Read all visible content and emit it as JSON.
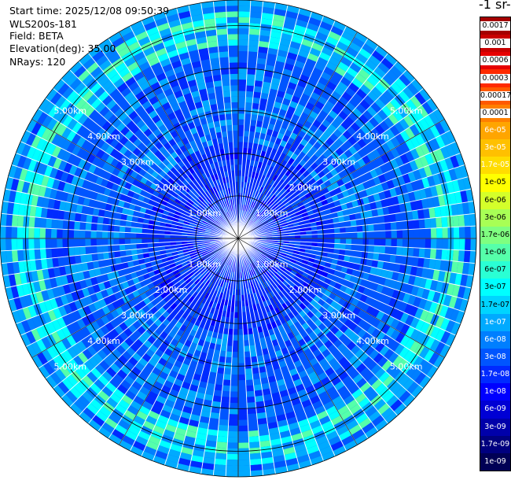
{
  "info": {
    "start_time": "Start time: 2025/12/08 09:50:39",
    "instrument": "WLS200s-181",
    "field": "Field: BETA",
    "elevation": "Elevation(deg): 35.00",
    "nrays": "NRays: 120"
  },
  "chart_data": {
    "type": "heatmap",
    "projection": "polar (PPI scan)",
    "range_rings": [
      {
        "label": "1.00km",
        "km": 1
      },
      {
        "label": "2.00km",
        "km": 2
      },
      {
        "label": "3.00km",
        "km": 3
      },
      {
        "label": "4.00km",
        "km": 4
      },
      {
        "label": "5.00km",
        "km": 5
      }
    ],
    "max_range_km": 5.6,
    "rays": 120,
    "colorbar": {
      "title": "-1 sr-",
      "labels": [
        "0.0017",
        "0.001",
        "0.0006",
        "0.0003",
        "0.00017",
        "0.0001",
        "6e-05",
        "3e-05",
        "1.7e-05",
        "1e-05",
        "6e-06",
        "3e-06",
        "1.7e-06",
        "1e-06",
        "6e-07",
        "3e-07",
        "1.7e-07",
        "1e-07",
        "6e-08",
        "3e-08",
        "1.7e-08",
        "1e-08",
        "6e-09",
        "3e-09",
        "1.7e-09",
        "1e-09"
      ],
      "colors": [
        "#a50000",
        "#c80000",
        "#e60000",
        "#ff2a00",
        "#ff5a00",
        "#ff7f00",
        "#ffa500",
        "#ffc000",
        "#ffdc00",
        "#ffff00",
        "#d4ff2a",
        "#a8ff55",
        "#7fff80",
        "#55ffaa",
        "#2affd4",
        "#00ffff",
        "#00d4ff",
        "#00aaff",
        "#007fff",
        "#0055ff",
        "#002aff",
        "#0000ff",
        "#0000d4",
        "#0000aa",
        "#00007f",
        "#000055"
      ]
    },
    "background_level": "3e-08",
    "bands": [
      {
        "range_km": [
          4.6,
          5.3
        ],
        "level": "3e-07"
      },
      {
        "range_km": [
          5.4,
          5.6
        ],
        "level": "1e-07"
      }
    ]
  }
}
